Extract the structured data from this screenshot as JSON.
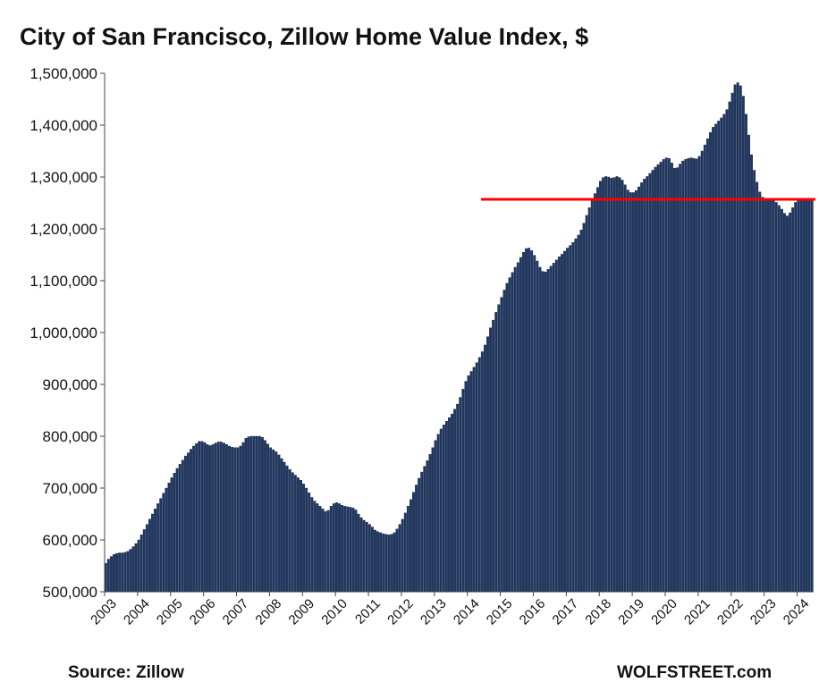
{
  "chart_data": {
    "type": "bar",
    "title": "City of San Francisco, Zillow Home Value Index, $",
    "xlabel": "",
    "ylabel": "",
    "ylim": [
      500000,
      1500000
    ],
    "y_ticks": [
      "500,000",
      "600,000",
      "700,000",
      "800,000",
      "900,000",
      "1,000,000",
      "1,100,000",
      "1,200,000",
      "1,300,000",
      "1,400,000",
      "1,500,000"
    ],
    "x_tick_labels": [
      "2003",
      "2004",
      "2005",
      "2006",
      "2007",
      "2008",
      "2009",
      "2010",
      "2011",
      "2012",
      "2013",
      "2014",
      "2015",
      "2016",
      "2017",
      "2018",
      "2019",
      "2020",
      "2021",
      "2022",
      "2023",
      "2024"
    ],
    "frequency": "monthly",
    "start": "2003-01",
    "end": "2024-11",
    "series": [
      {
        "name": "Zillow Home Value Index",
        "color": "#1f3864",
        "values": [
          555000,
          563000,
          568000,
          572000,
          574000,
          575000,
          575000,
          576000,
          578000,
          582000,
          587000,
          593000,
          600000,
          610000,
          620000,
          630000,
          640000,
          650000,
          660000,
          670000,
          680000,
          690000,
          700000,
          710000,
          720000,
          729000,
          738000,
          746000,
          754000,
          762000,
          768000,
          775000,
          781000,
          786000,
          790000,
          790000,
          788000,
          784000,
          782000,
          784000,
          787000,
          789000,
          789000,
          787000,
          784000,
          781000,
          779000,
          778000,
          778000,
          781000,
          788000,
          796000,
          799000,
          800000,
          800000,
          800000,
          800000,
          798000,
          792000,
          785000,
          778000,
          774000,
          770000,
          764000,
          757000,
          750000,
          743000,
          736000,
          730000,
          725000,
          720000,
          715000,
          708000,
          700000,
          691000,
          682000,
          675000,
          670000,
          665000,
          660000,
          655000,
          657000,
          665000,
          670000,
          672000,
          670000,
          667000,
          665000,
          664000,
          663000,
          662000,
          658000,
          650000,
          643000,
          638000,
          634000,
          630000,
          625000,
          619000,
          616000,
          614000,
          612000,
          611000,
          610000,
          611000,
          614000,
          621000,
          630000,
          640000,
          652000,
          665000,
          678000,
          692000,
          706000,
          719000,
          731000,
          742000,
          753000,
          765000,
          778000,
          792000,
          804000,
          814000,
          822000,
          829000,
          836000,
          843000,
          852000,
          862000,
          875000,
          891000,
          906000,
          917000,
          925000,
          933000,
          942000,
          952000,
          963000,
          976000,
          992000,
          1009000,
          1024000,
          1039000,
          1054000,
          1068000,
          1082000,
          1095000,
          1106000,
          1116000,
          1126000,
          1135000,
          1145000,
          1155000,
          1162000,
          1163000,
          1158000,
          1149000,
          1138000,
          1126000,
          1118000,
          1117000,
          1122000,
          1128000,
          1134000,
          1140000,
          1146000,
          1151000,
          1157000,
          1163000,
          1168000,
          1174000,
          1181000,
          1188000,
          1198000,
          1211000,
          1226000,
          1241000,
          1255000,
          1268000,
          1280000,
          1292000,
          1299000,
          1301000,
          1300000,
          1298000,
          1299000,
          1301000,
          1299000,
          1294000,
          1285000,
          1275000,
          1270000,
          1270000,
          1274000,
          1281000,
          1289000,
          1296000,
          1301000,
          1307000,
          1313000,
          1319000,
          1324000,
          1329000,
          1334000,
          1337000,
          1336000,
          1327000,
          1317000,
          1318000,
          1325000,
          1331000,
          1334000,
          1336000,
          1337000,
          1336000,
          1335000,
          1340000,
          1350000,
          1362000,
          1374000,
          1386000,
          1396000,
          1402000,
          1408000,
          1414000,
          1421000,
          1430000,
          1445000,
          1462000,
          1478000,
          1482000,
          1476000,
          1456000,
          1421000,
          1381000,
          1343000,
          1313000,
          1290000,
          1271000,
          1261000,
          1257000,
          1255000,
          1255000,
          1254000,
          1251000,
          1245000,
          1238000,
          1230000,
          1225000,
          1231000,
          1241000,
          1251000,
          1256000,
          1258000,
          1258000,
          1257000,
          1256000,
          1256000
        ]
      }
    ],
    "reference_line": {
      "value": 1257000,
      "color": "#ff0000",
      "start": "2014-06",
      "end": "2024-11"
    }
  },
  "footer": {
    "source": "Source: Zillow",
    "brand": "WOLFSTREET.com"
  }
}
